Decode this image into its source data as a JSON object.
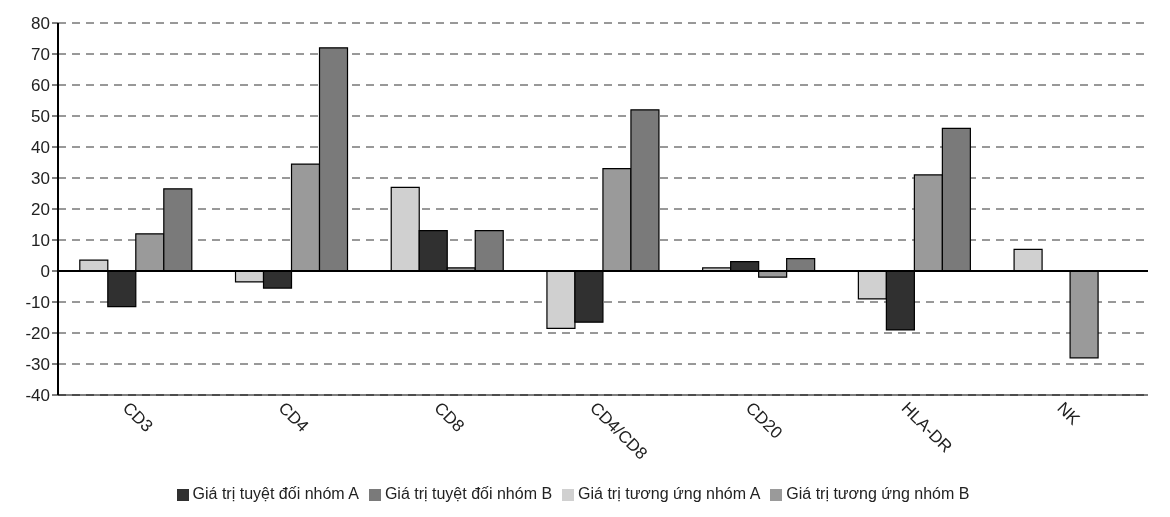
{
  "chart_data": {
    "type": "bar",
    "categories": [
      "CD3",
      "CD4",
      "CD8",
      "CD4/CD8",
      "CD20",
      "HLA-DR",
      "NK"
    ],
    "series": [
      {
        "name": "Giá trị tương ứng nhóm A",
        "color": "#d0d0d0",
        "values": [
          3.5,
          -3.5,
          27,
          -18.5,
          1,
          -9,
          7
        ]
      },
      {
        "name": "Giá trị tuyệt đối nhóm A",
        "color": "#303030",
        "values": [
          -11.5,
          -5.5,
          13,
          -16.5,
          3,
          -19,
          null
        ]
      },
      {
        "name": "Giá trị tương ứng nhóm B",
        "color": "#9a9a9a",
        "values": [
          12,
          34.5,
          1,
          33,
          -2,
          31,
          -28
        ]
      },
      {
        "name": "Giá trị tuyệt đối nhóm B",
        "color": "#7a7a7a",
        "values": [
          26.5,
          72,
          13,
          52,
          4,
          46,
          null
        ]
      }
    ],
    "ylim": [
      -40,
      80
    ],
    "yticks": [
      -40,
      -30,
      -20,
      -10,
      0,
      10,
      20,
      30,
      40,
      50,
      60,
      70,
      80
    ],
    "grid": "y",
    "legend": "bottom"
  }
}
